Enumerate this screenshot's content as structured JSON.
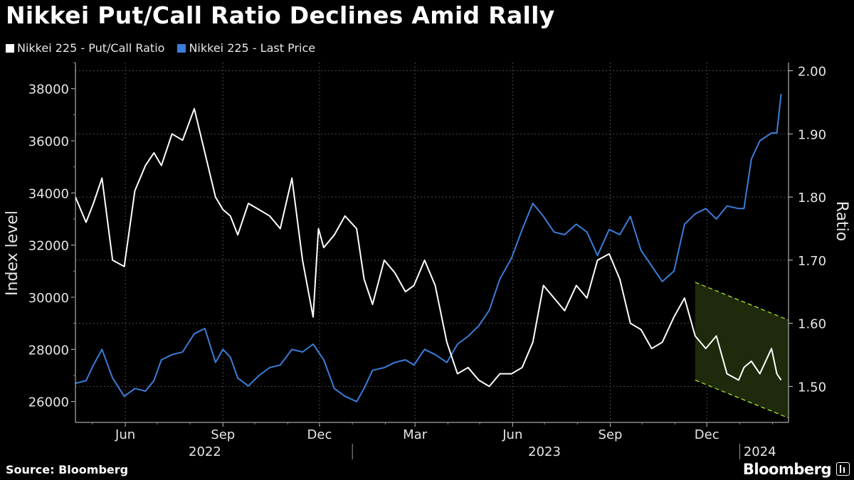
{
  "title": "Nikkei Put/Call Ratio Declines Amid Rally",
  "source": "Source: Bloomberg",
  "brand": "Bloomberg",
  "colors": {
    "background": "#000000",
    "ratio_series": "#ffffff",
    "price_series": "#3b7dd8",
    "highlight_fill": "#1e2a0b",
    "highlight_border": "#a6e22e",
    "grid": "#4a4a4a",
    "axis_text": "#e6e6e6"
  },
  "chart_data": {
    "type": "line",
    "grid": true,
    "legend_placement": "top-left",
    "series": [
      {
        "name": "Nikkei 225 - Put/Call Ratio",
        "axis": "right",
        "x": [
          "2022-04-15",
          "2022-04-25",
          "2022-05-02",
          "2022-05-10",
          "2022-05-20",
          "2022-05-31",
          "2022-06-10",
          "2022-06-20",
          "2022-06-28",
          "2022-07-05",
          "2022-07-15",
          "2022-07-25",
          "2022-08-05",
          "2022-08-15",
          "2022-08-25",
          "2022-09-01",
          "2022-09-08",
          "2022-09-15",
          "2022-09-25",
          "2022-10-05",
          "2022-10-15",
          "2022-10-25",
          "2022-11-05",
          "2022-11-15",
          "2022-11-25",
          "2022-11-30",
          "2022-12-05",
          "2022-12-15",
          "2022-12-25",
          "2023-01-05",
          "2023-01-12",
          "2023-01-20",
          "2023-01-31",
          "2023-02-10",
          "2023-02-20",
          "2023-02-28",
          "2023-03-10",
          "2023-03-20",
          "2023-03-31",
          "2023-04-10",
          "2023-04-20",
          "2023-04-30",
          "2023-05-10",
          "2023-05-20",
          "2023-05-31",
          "2023-06-10",
          "2023-06-20",
          "2023-06-30",
          "2023-07-10",
          "2023-07-20",
          "2023-07-31",
          "2023-08-10",
          "2023-08-20",
          "2023-08-31",
          "2023-09-10",
          "2023-09-20",
          "2023-09-30",
          "2023-10-10",
          "2023-10-20",
          "2023-10-31",
          "2023-11-10",
          "2023-11-20",
          "2023-11-30",
          "2023-12-10",
          "2023-12-20",
          "2023-12-31",
          "2024-01-05",
          "2024-01-12",
          "2024-01-20",
          "2024-01-31",
          "2024-02-05",
          "2024-02-09"
        ],
        "values": [
          1.8,
          1.76,
          1.79,
          1.83,
          1.7,
          1.69,
          1.81,
          1.85,
          1.87,
          1.85,
          1.9,
          1.89,
          1.94,
          1.87,
          1.8,
          1.78,
          1.77,
          1.74,
          1.79,
          1.78,
          1.77,
          1.75,
          1.83,
          1.7,
          1.61,
          1.75,
          1.72,
          1.74,
          1.77,
          1.75,
          1.67,
          1.63,
          1.7,
          1.68,
          1.65,
          1.66,
          1.7,
          1.66,
          1.57,
          1.52,
          1.53,
          1.51,
          1.5,
          1.52,
          1.52,
          1.53,
          1.57,
          1.66,
          1.64,
          1.62,
          1.66,
          1.64,
          1.7,
          1.71,
          1.67,
          1.6,
          1.59,
          1.56,
          1.57,
          1.61,
          1.64,
          1.58,
          1.56,
          1.58,
          1.52,
          1.51,
          1.53,
          1.54,
          1.52,
          1.56,
          1.52,
          1.51
        ]
      },
      {
        "name": "Nikkei 225 - Last Price",
        "axis": "left",
        "x": [
          "2022-04-15",
          "2022-04-25",
          "2022-05-02",
          "2022-05-10",
          "2022-05-20",
          "2022-05-31",
          "2022-06-10",
          "2022-06-20",
          "2022-06-28",
          "2022-07-05",
          "2022-07-15",
          "2022-07-25",
          "2022-08-05",
          "2022-08-15",
          "2022-08-25",
          "2022-09-01",
          "2022-09-08",
          "2022-09-15",
          "2022-09-25",
          "2022-10-05",
          "2022-10-15",
          "2022-10-25",
          "2022-11-05",
          "2022-11-15",
          "2022-11-25",
          "2022-11-30",
          "2022-12-05",
          "2022-12-15",
          "2022-12-25",
          "2023-01-05",
          "2023-01-12",
          "2023-01-20",
          "2023-01-31",
          "2023-02-10",
          "2023-02-20",
          "2023-02-28",
          "2023-03-10",
          "2023-03-20",
          "2023-03-31",
          "2023-04-10",
          "2023-04-20",
          "2023-04-30",
          "2023-05-10",
          "2023-05-20",
          "2023-05-31",
          "2023-06-10",
          "2023-06-20",
          "2023-06-30",
          "2023-07-10",
          "2023-07-20",
          "2023-07-31",
          "2023-08-10",
          "2023-08-20",
          "2023-08-31",
          "2023-09-10",
          "2023-09-20",
          "2023-09-30",
          "2023-10-10",
          "2023-10-20",
          "2023-10-31",
          "2023-11-10",
          "2023-11-20",
          "2023-11-30",
          "2023-12-10",
          "2023-12-20",
          "2023-12-31",
          "2024-01-05",
          "2024-01-12",
          "2024-01-20",
          "2024-01-31",
          "2024-02-05",
          "2024-02-09"
        ],
        "values": [
          26700,
          26800,
          27400,
          28000,
          26900,
          26200,
          26500,
          26400,
          26800,
          27600,
          27800,
          27900,
          28600,
          28800,
          27500,
          28000,
          27700,
          26900,
          26600,
          27000,
          27300,
          27400,
          28000,
          27900,
          28200,
          27900,
          27600,
          26500,
          26200,
          26000,
          26500,
          27200,
          27300,
          27500,
          27600,
          27400,
          28000,
          27800,
          27500,
          28200,
          28500,
          28900,
          29500,
          30700,
          31500,
          32600,
          33600,
          33100,
          32500,
          32400,
          32800,
          32500,
          31600,
          32600,
          32400,
          33100,
          31800,
          31200,
          30600,
          31000,
          32800,
          33200,
          33400,
          33000,
          33500,
          33400,
          33400,
          35300,
          36000,
          36300,
          36300,
          37800
        ]
      }
    ],
    "left_axis": {
      "label": "Index level",
      "range": [
        25200,
        39000
      ],
      "ticks": [
        "26000",
        "28000",
        "30000",
        "32000",
        "34000",
        "36000",
        "38000"
      ]
    },
    "right_axis": {
      "label": "Ratio",
      "range": [
        1.443,
        2.013
      ],
      "ticks": [
        "1.50",
        "1.60",
        "1.70",
        "1.80",
        "1.90",
        "2.00"
      ]
    },
    "x_axis": {
      "range": [
        "2022-04-15",
        "2024-02-16"
      ],
      "month_ticks": [
        {
          "label": "Jun",
          "date": "2022-06-01"
        },
        {
          "label": "Sep",
          "date": "2022-09-01"
        },
        {
          "label": "Dec",
          "date": "2022-12-01"
        },
        {
          "label": "Mar",
          "date": "2023-03-01"
        },
        {
          "label": "Jun",
          "date": "2023-06-01"
        },
        {
          "label": "Sep",
          "date": "2023-09-01"
        },
        {
          "label": "Dec",
          "date": "2023-12-01"
        }
      ],
      "year_labels": [
        {
          "label": "2022",
          "date": "2022-08-15"
        },
        {
          "label": "2023",
          "date": "2023-07-01"
        },
        {
          "label": "2024",
          "date": "2024-01-20"
        }
      ],
      "year_dividers": [
        "2023-01-01",
        "2024-01-01"
      ]
    },
    "highlight_channel": {
      "start": "2023-11-20",
      "end": "2024-02-16",
      "upper": [
        1.665,
        1.605
      ],
      "lower": [
        1.51,
        1.45
      ]
    }
  }
}
